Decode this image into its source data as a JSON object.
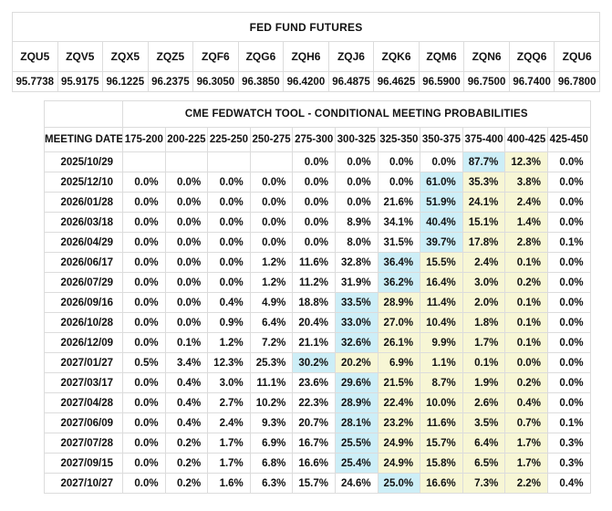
{
  "colors": {
    "blue_highlight": "#cdeef7",
    "yellow_highlight": "#f7f6d5",
    "cell_border": "#dcdcdc",
    "text": "#111111"
  },
  "futures": {
    "title": "FED FUND FUTURES",
    "contracts": [
      {
        "code": "ZQU5",
        "price": "95.7738"
      },
      {
        "code": "ZQV5",
        "price": "95.9175"
      },
      {
        "code": "ZQX5",
        "price": "96.1225"
      },
      {
        "code": "ZQZ5",
        "price": "96.2375"
      },
      {
        "code": "ZQF6",
        "price": "96.3050"
      },
      {
        "code": "ZQG6",
        "price": "96.3850"
      },
      {
        "code": "ZQH6",
        "price": "96.4200"
      },
      {
        "code": "ZQJ6",
        "price": "96.4875"
      },
      {
        "code": "ZQK6",
        "price": "96.4625"
      },
      {
        "code": "ZQM6",
        "price": "96.5900"
      },
      {
        "code": "ZQN6",
        "price": "96.7500"
      },
      {
        "code": "ZQQ6",
        "price": "96.7400"
      },
      {
        "code": "ZQU6",
        "price": "96.7800"
      }
    ]
  },
  "fedwatch": {
    "title": "CME FEDWATCH TOOL - CONDITIONAL MEETING PROBABILITIES",
    "date_column_header": "MEETING DATE",
    "rate_bins": [
      "175-200",
      "200-225",
      "225-250",
      "250-275",
      "275-300",
      "300-325",
      "325-350",
      "350-375",
      "375-400",
      "400-425",
      "425-450"
    ],
    "rows": [
      {
        "date": "2025/10/29",
        "cells": [
          {
            "v": ""
          },
          {
            "v": ""
          },
          {
            "v": ""
          },
          {
            "v": ""
          },
          {
            "v": "0.0%"
          },
          {
            "v": "0.0%"
          },
          {
            "v": "0.0%"
          },
          {
            "v": "0.0%"
          },
          {
            "v": "87.7%",
            "hl": "blue"
          },
          {
            "v": "12.3%",
            "hl": "yellow"
          },
          {
            "v": "0.0%"
          }
        ]
      },
      {
        "date": "2025/12/10",
        "cells": [
          {
            "v": "0.0%"
          },
          {
            "v": "0.0%"
          },
          {
            "v": "0.0%"
          },
          {
            "v": "0.0%"
          },
          {
            "v": "0.0%"
          },
          {
            "v": "0.0%"
          },
          {
            "v": "0.0%"
          },
          {
            "v": "61.0%",
            "hl": "blue"
          },
          {
            "v": "35.3%",
            "hl": "yellow"
          },
          {
            "v": "3.8%",
            "hl": "yellow"
          },
          {
            "v": "0.0%"
          }
        ]
      },
      {
        "date": "2026/01/28",
        "cells": [
          {
            "v": "0.0%"
          },
          {
            "v": "0.0%"
          },
          {
            "v": "0.0%"
          },
          {
            "v": "0.0%"
          },
          {
            "v": "0.0%"
          },
          {
            "v": "0.0%"
          },
          {
            "v": "21.6%"
          },
          {
            "v": "51.9%",
            "hl": "blue"
          },
          {
            "v": "24.1%",
            "hl": "yellow"
          },
          {
            "v": "2.4%",
            "hl": "yellow"
          },
          {
            "v": "0.0%"
          }
        ]
      },
      {
        "date": "2026/03/18",
        "cells": [
          {
            "v": "0.0%"
          },
          {
            "v": "0.0%"
          },
          {
            "v": "0.0%"
          },
          {
            "v": "0.0%"
          },
          {
            "v": "0.0%"
          },
          {
            "v": "8.9%"
          },
          {
            "v": "34.1%"
          },
          {
            "v": "40.4%",
            "hl": "blue"
          },
          {
            "v": "15.1%",
            "hl": "yellow"
          },
          {
            "v": "1.4%",
            "hl": "yellow"
          },
          {
            "v": "0.0%"
          }
        ]
      },
      {
        "date": "2026/04/29",
        "cells": [
          {
            "v": "0.0%"
          },
          {
            "v": "0.0%"
          },
          {
            "v": "0.0%"
          },
          {
            "v": "0.0%"
          },
          {
            "v": "0.0%"
          },
          {
            "v": "8.0%"
          },
          {
            "v": "31.5%"
          },
          {
            "v": "39.7%",
            "hl": "blue"
          },
          {
            "v": "17.8%",
            "hl": "yellow"
          },
          {
            "v": "2.8%",
            "hl": "yellow"
          },
          {
            "v": "0.1%"
          }
        ]
      },
      {
        "date": "2026/06/17",
        "cells": [
          {
            "v": "0.0%"
          },
          {
            "v": "0.0%"
          },
          {
            "v": "0.0%"
          },
          {
            "v": "1.2%"
          },
          {
            "v": "11.6%"
          },
          {
            "v": "32.8%"
          },
          {
            "v": "36.4%",
            "hl": "blue"
          },
          {
            "v": "15.5%",
            "hl": "yellow"
          },
          {
            "v": "2.4%",
            "hl": "yellow"
          },
          {
            "v": "0.1%",
            "hl": "yellow"
          },
          {
            "v": "0.0%"
          }
        ]
      },
      {
        "date": "2026/07/29",
        "cells": [
          {
            "v": "0.0%"
          },
          {
            "v": "0.0%"
          },
          {
            "v": "0.0%"
          },
          {
            "v": "1.2%"
          },
          {
            "v": "11.2%"
          },
          {
            "v": "31.9%"
          },
          {
            "v": "36.2%",
            "hl": "blue"
          },
          {
            "v": "16.4%",
            "hl": "yellow"
          },
          {
            "v": "3.0%",
            "hl": "yellow"
          },
          {
            "v": "0.2%",
            "hl": "yellow"
          },
          {
            "v": "0.0%"
          }
        ]
      },
      {
        "date": "2026/09/16",
        "cells": [
          {
            "v": "0.0%"
          },
          {
            "v": "0.0%"
          },
          {
            "v": "0.4%"
          },
          {
            "v": "4.9%"
          },
          {
            "v": "18.8%"
          },
          {
            "v": "33.5%",
            "hl": "blue"
          },
          {
            "v": "28.9%",
            "hl": "yellow"
          },
          {
            "v": "11.4%",
            "hl": "yellow"
          },
          {
            "v": "2.0%",
            "hl": "yellow"
          },
          {
            "v": "0.1%",
            "hl": "yellow"
          },
          {
            "v": "0.0%"
          }
        ]
      },
      {
        "date": "2026/10/28",
        "cells": [
          {
            "v": "0.0%"
          },
          {
            "v": "0.0%"
          },
          {
            "v": "0.9%"
          },
          {
            "v": "6.4%"
          },
          {
            "v": "20.4%"
          },
          {
            "v": "33.0%",
            "hl": "blue"
          },
          {
            "v": "27.0%",
            "hl": "yellow"
          },
          {
            "v": "10.4%",
            "hl": "yellow"
          },
          {
            "v": "1.8%",
            "hl": "yellow"
          },
          {
            "v": "0.1%",
            "hl": "yellow"
          },
          {
            "v": "0.0%"
          }
        ]
      },
      {
        "date": "2026/12/09",
        "cells": [
          {
            "v": "0.0%"
          },
          {
            "v": "0.1%"
          },
          {
            "v": "1.2%"
          },
          {
            "v": "7.2%"
          },
          {
            "v": "21.1%"
          },
          {
            "v": "32.6%",
            "hl": "blue"
          },
          {
            "v": "26.1%",
            "hl": "yellow"
          },
          {
            "v": "9.9%",
            "hl": "yellow"
          },
          {
            "v": "1.7%",
            "hl": "yellow"
          },
          {
            "v": "0.1%",
            "hl": "yellow"
          },
          {
            "v": "0.0%"
          }
        ]
      },
      {
        "date": "2027/01/27",
        "cells": [
          {
            "v": "0.5%"
          },
          {
            "v": "3.4%"
          },
          {
            "v": "12.3%"
          },
          {
            "v": "25.3%"
          },
          {
            "v": "30.2%",
            "hl": "blue"
          },
          {
            "v": "20.2%",
            "hl": "yellow"
          },
          {
            "v": "6.9%",
            "hl": "yellow"
          },
          {
            "v": "1.1%",
            "hl": "yellow"
          },
          {
            "v": "0.1%",
            "hl": "yellow"
          },
          {
            "v": "0.0%",
            "hl": "yellow"
          },
          {
            "v": "0.0%"
          }
        ]
      },
      {
        "date": "2027/03/17",
        "cells": [
          {
            "v": "0.0%"
          },
          {
            "v": "0.4%"
          },
          {
            "v": "3.0%"
          },
          {
            "v": "11.1%"
          },
          {
            "v": "23.6%"
          },
          {
            "v": "29.6%",
            "hl": "blue"
          },
          {
            "v": "21.5%",
            "hl": "yellow"
          },
          {
            "v": "8.7%",
            "hl": "yellow"
          },
          {
            "v": "1.9%",
            "hl": "yellow"
          },
          {
            "v": "0.2%",
            "hl": "yellow"
          },
          {
            "v": "0.0%"
          }
        ]
      },
      {
        "date": "2027/04/28",
        "cells": [
          {
            "v": "0.0%"
          },
          {
            "v": "0.4%"
          },
          {
            "v": "2.7%"
          },
          {
            "v": "10.2%"
          },
          {
            "v": "22.3%"
          },
          {
            "v": "28.9%",
            "hl": "blue"
          },
          {
            "v": "22.4%",
            "hl": "yellow"
          },
          {
            "v": "10.0%",
            "hl": "yellow"
          },
          {
            "v": "2.6%",
            "hl": "yellow"
          },
          {
            "v": "0.4%",
            "hl": "yellow"
          },
          {
            "v": "0.0%"
          }
        ]
      },
      {
        "date": "2027/06/09",
        "cells": [
          {
            "v": "0.0%"
          },
          {
            "v": "0.4%"
          },
          {
            "v": "2.4%"
          },
          {
            "v": "9.3%"
          },
          {
            "v": "20.7%"
          },
          {
            "v": "28.1%",
            "hl": "blue"
          },
          {
            "v": "23.2%",
            "hl": "yellow"
          },
          {
            "v": "11.6%",
            "hl": "yellow"
          },
          {
            "v": "3.5%",
            "hl": "yellow"
          },
          {
            "v": "0.7%",
            "hl": "yellow"
          },
          {
            "v": "0.1%"
          }
        ]
      },
      {
        "date": "2027/07/28",
        "cells": [
          {
            "v": "0.0%"
          },
          {
            "v": "0.2%"
          },
          {
            "v": "1.7%"
          },
          {
            "v": "6.9%"
          },
          {
            "v": "16.7%"
          },
          {
            "v": "25.5%",
            "hl": "blue"
          },
          {
            "v": "24.9%",
            "hl": "yellow"
          },
          {
            "v": "15.7%",
            "hl": "yellow"
          },
          {
            "v": "6.4%",
            "hl": "yellow"
          },
          {
            "v": "1.7%",
            "hl": "yellow"
          },
          {
            "v": "0.3%"
          }
        ]
      },
      {
        "date": "2027/09/15",
        "cells": [
          {
            "v": "0.0%"
          },
          {
            "v": "0.2%"
          },
          {
            "v": "1.7%"
          },
          {
            "v": "6.8%"
          },
          {
            "v": "16.6%"
          },
          {
            "v": "25.4%",
            "hl": "blue"
          },
          {
            "v": "24.9%",
            "hl": "yellow"
          },
          {
            "v": "15.8%",
            "hl": "yellow"
          },
          {
            "v": "6.5%",
            "hl": "yellow"
          },
          {
            "v": "1.7%",
            "hl": "yellow"
          },
          {
            "v": "0.3%"
          }
        ]
      },
      {
        "date": "2027/10/27",
        "cells": [
          {
            "v": "0.0%"
          },
          {
            "v": "0.2%"
          },
          {
            "v": "1.6%"
          },
          {
            "v": "6.3%"
          },
          {
            "v": "15.7%"
          },
          {
            "v": "24.6%"
          },
          {
            "v": "25.0%",
            "hl": "blue"
          },
          {
            "v": "16.6%",
            "hl": "yellow"
          },
          {
            "v": "7.3%",
            "hl": "yellow"
          },
          {
            "v": "2.2%",
            "hl": "yellow"
          },
          {
            "v": "0.4%"
          }
        ]
      }
    ]
  }
}
